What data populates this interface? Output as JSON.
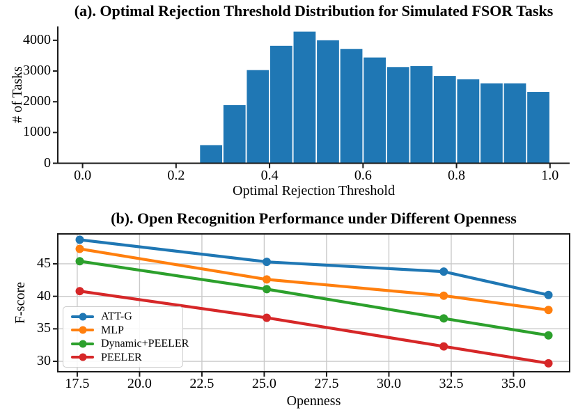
{
  "figure": {
    "background": "#ffffff",
    "text_color": "#000000",
    "spine_color": "#1a1a1a",
    "grid_color": "#c9c9c9"
  },
  "chart_data": [
    {
      "type": "bar",
      "title": "(a). Optimal Rejection Threshold Distribution for Simulated FSOR Tasks",
      "xlabel": "Optimal Rejection Threshold",
      "ylabel": "# of Tasks",
      "bar_color": "#1f77b4",
      "bin_start": 0.25,
      "bin_width": 0.05,
      "bin_edges": [
        0.25,
        0.3,
        0.35,
        0.4,
        0.45,
        0.5,
        0.55,
        0.6,
        0.65,
        0.7,
        0.75,
        0.8,
        0.85,
        0.9,
        0.95,
        1.0
      ],
      "values": [
        590,
        1890,
        3030,
        3820,
        4280,
        4000,
        3720,
        3440,
        3130,
        3160,
        2840,
        2730,
        2600,
        2600,
        2320
      ],
      "x_ticks": [
        "0.0",
        "0.2",
        "0.4",
        "0.6",
        "0.8",
        "1.0"
      ],
      "x_tick_values": [
        0.0,
        0.2,
        0.4,
        0.6,
        0.8,
        1.0
      ],
      "y_ticks": [
        "0",
        "1000",
        "2000",
        "3000",
        "4000"
      ],
      "y_tick_values": [
        0,
        1000,
        2000,
        3000,
        4000
      ],
      "xlim": [
        -0.053,
        1.042
      ],
      "ylim": [
        0,
        4450
      ],
      "grid": false,
      "spines": "left-bottom"
    },
    {
      "type": "line",
      "title": "(b). Open Recognition Performance under Different Openness",
      "xlabel": "Openness",
      "ylabel": "F-score",
      "x": [
        17.6,
        25.1,
        32.2,
        36.4
      ],
      "series": [
        {
          "name": "ATT-G",
          "color": "#1f77b4",
          "values": [
            48.7,
            45.3,
            43.8,
            40.2
          ]
        },
        {
          "name": "MLP",
          "color": "#ff7f0e",
          "values": [
            47.3,
            42.6,
            40.1,
            37.9
          ]
        },
        {
          "name": "Dynamic+PEELER",
          "color": "#2ca02c",
          "values": [
            45.4,
            41.1,
            36.6,
            34.0
          ]
        },
        {
          "name": "PEELER",
          "color": "#d62728",
          "values": [
            40.8,
            36.7,
            32.3,
            29.7
          ]
        }
      ],
      "x_ticks": [
        "17.5",
        "20.0",
        "22.5",
        "25.0",
        "27.5",
        "30.0",
        "32.5",
        "35.0"
      ],
      "x_tick_values": [
        17.5,
        20.0,
        22.5,
        25.0,
        27.5,
        30.0,
        32.5,
        35.0
      ],
      "y_ticks": [
        "30",
        "35",
        "40",
        "45"
      ],
      "y_tick_values": [
        30,
        35,
        40,
        45
      ],
      "xlim": [
        16.72,
        37.25
      ],
      "ylim": [
        28.4,
        49.6
      ],
      "grid": true,
      "legend_position": "lower left",
      "spines": "box"
    }
  ]
}
